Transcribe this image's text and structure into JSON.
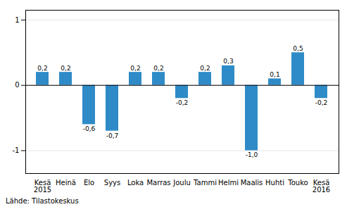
{
  "chart_data": {
    "type": "bar",
    "categories": [
      "Kesä\n2015",
      "Heinä",
      "Elo",
      "Syys",
      "Loka",
      "Marras",
      "Joulu",
      "Tammi",
      "Helmi",
      "Maalis",
      "Huhti",
      "Touko",
      "Kesä\n2016"
    ],
    "values": [
      0.2,
      0.2,
      -0.6,
      -0.7,
      0.2,
      0.2,
      -0.2,
      0.2,
      0.3,
      -1.0,
      0.1,
      0.5,
      -0.2
    ],
    "value_labels": [
      "0,2",
      "0,2",
      "-0,6",
      "-0,7",
      "0,2",
      "0,2",
      "-0,2",
      "0,2",
      "0,3",
      "-1,0",
      "0,1",
      "0,5",
      "-0,2"
    ],
    "data_labels": true,
    "color": "#2E8BC7",
    "ylim": [
      -1.35,
      1.15
    ],
    "yticks": [
      -1,
      0,
      1
    ],
    "grid": true,
    "caption": "Lähde: Tilastokeskus"
  }
}
